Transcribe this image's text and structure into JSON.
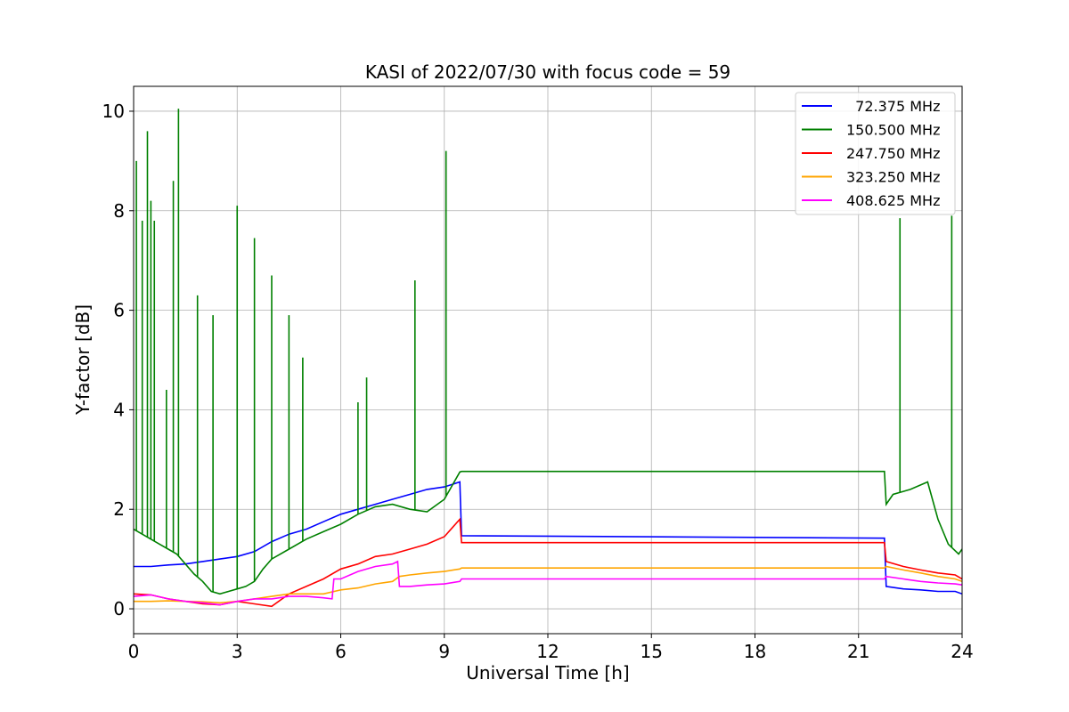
{
  "chart_data": {
    "type": "line",
    "title": "KASI of 2022/07/30 with focus code = 59",
    "xlabel": "Universal Time [h]",
    "ylabel": "Y-factor [dB]",
    "xlim": [
      0,
      24
    ],
    "ylim": [
      -0.5,
      10.5
    ],
    "xticks": [
      "0",
      "3",
      "6",
      "9",
      "12",
      "15",
      "18",
      "21",
      "24"
    ],
    "yticks": [
      "0",
      "2",
      "4",
      "6",
      "8",
      "10"
    ],
    "grid": true,
    "legend_position": "top-right",
    "series": [
      {
        "name": "  72.375 MHz",
        "color": "#0000ff",
        "x": [
          0,
          0.5,
          1,
          1.5,
          2,
          2.5,
          3,
          3.5,
          4,
          4.5,
          5,
          5.5,
          6,
          6.5,
          7,
          7.5,
          8,
          8.5,
          9,
          9.45,
          9.5,
          21.75,
          21.8,
          22.3,
          22.8,
          23.3,
          23.8,
          24
        ],
        "y": [
          0.85,
          0.85,
          0.88,
          0.9,
          0.95,
          1.0,
          1.05,
          1.15,
          1.35,
          1.5,
          1.6,
          1.75,
          1.9,
          2.0,
          2.1,
          2.2,
          2.3,
          2.4,
          2.45,
          2.55,
          1.47,
          1.42,
          0.45,
          0.4,
          0.38,
          0.35,
          0.35,
          0.3
        ]
      },
      {
        "name": "150.500 MHz",
        "color": "#008000",
        "x": [
          0,
          0.25,
          0.5,
          0.75,
          1,
          1.25,
          1.5,
          1.75,
          2,
          2.25,
          2.5,
          2.75,
          3,
          3.25,
          3.5,
          3.75,
          4,
          4.5,
          5,
          5.5,
          6,
          6.5,
          7,
          7.5,
          8,
          8.5,
          9,
          9.45,
          9.5,
          21.75,
          21.8,
          22,
          22.5,
          23,
          23.3,
          23.6,
          23.9,
          24
        ],
        "y": [
          1.6,
          1.5,
          1.4,
          1.3,
          1.2,
          1.1,
          0.9,
          0.7,
          0.55,
          0.35,
          0.3,
          0.35,
          0.4,
          0.45,
          0.55,
          0.8,
          1.0,
          1.2,
          1.4,
          1.55,
          1.7,
          1.9,
          2.05,
          2.1,
          2.0,
          1.95,
          2.2,
          2.75,
          2.76,
          2.76,
          2.1,
          2.3,
          2.4,
          2.55,
          1.8,
          1.3,
          1.1,
          1.2
        ]
      },
      {
        "name": "247.750 MHz",
        "color": "#ff0000",
        "x": [
          0,
          0.5,
          1,
          1.5,
          2,
          2.5,
          3,
          3.5,
          4,
          4.5,
          5,
          5.5,
          6,
          6.5,
          7,
          7.5,
          8,
          8.5,
          9,
          9.45,
          9.5,
          21.75,
          21.8,
          22.3,
          22.8,
          23.3,
          23.8,
          24
        ],
        "y": [
          0.3,
          0.28,
          0.2,
          0.15,
          0.1,
          0.08,
          0.15,
          0.1,
          0.05,
          0.3,
          0.45,
          0.6,
          0.8,
          0.9,
          1.05,
          1.1,
          1.2,
          1.3,
          1.45,
          1.8,
          1.33,
          1.33,
          0.95,
          0.85,
          0.78,
          0.72,
          0.68,
          0.6
        ]
      },
      {
        "name": "323.250 MHz",
        "color": "#ffa500",
        "x": [
          0,
          0.5,
          1,
          1.5,
          2,
          2.5,
          3,
          3.5,
          4,
          4.5,
          5,
          5.5,
          6,
          6.5,
          7,
          7.5,
          7.7,
          8,
          8.5,
          9,
          9.45,
          9.5,
          21.75,
          21.8,
          22.3,
          22.8,
          23.3,
          23.8,
          24
        ],
        "y": [
          0.15,
          0.15,
          0.16,
          0.15,
          0.14,
          0.12,
          0.15,
          0.2,
          0.25,
          0.3,
          0.3,
          0.3,
          0.38,
          0.42,
          0.5,
          0.55,
          0.65,
          0.68,
          0.72,
          0.75,
          0.8,
          0.82,
          0.82,
          0.85,
          0.78,
          0.72,
          0.65,
          0.6,
          0.55
        ]
      },
      {
        "name": "408.625 MHz",
        "color": "#ff00ff",
        "x": [
          0,
          0.5,
          1,
          1.5,
          2,
          2.5,
          3,
          3.5,
          4,
          4.5,
          5,
          5.5,
          5.75,
          5.8,
          6,
          6.5,
          7,
          7.5,
          7.65,
          7.7,
          8,
          8.5,
          9,
          9.45,
          9.5,
          21.75,
          21.8,
          22.3,
          22.8,
          23.3,
          23.8,
          24
        ],
        "y": [
          0.25,
          0.28,
          0.2,
          0.15,
          0.12,
          0.08,
          0.15,
          0.2,
          0.2,
          0.25,
          0.25,
          0.22,
          0.2,
          0.6,
          0.6,
          0.75,
          0.85,
          0.9,
          0.95,
          0.45,
          0.45,
          0.48,
          0.5,
          0.55,
          0.6,
          0.6,
          0.65,
          0.6,
          0.55,
          0.52,
          0.5,
          0.48
        ]
      }
    ],
    "annotations": [
      {
        "series": "150.500 MHz",
        "x": 0.08,
        "y": 9.0
      },
      {
        "series": "150.500 MHz",
        "x": 0.25,
        "y": 7.8
      },
      {
        "series": "150.500 MHz",
        "x": 0.4,
        "y": 9.6
      },
      {
        "series": "150.500 MHz",
        "x": 0.5,
        "y": 8.2
      },
      {
        "series": "150.500 MHz",
        "x": 0.6,
        "y": 7.8
      },
      {
        "series": "150.500 MHz",
        "x": 0.95,
        "y": 4.4
      },
      {
        "series": "150.500 MHz",
        "x": 1.15,
        "y": 8.6
      },
      {
        "series": "150.500 MHz",
        "x": 1.3,
        "y": 10.05
      },
      {
        "series": "150.500 MHz",
        "x": 1.85,
        "y": 6.3
      },
      {
        "series": "150.500 MHz",
        "x": 2.3,
        "y": 5.9
      },
      {
        "series": "150.500 MHz",
        "x": 3.0,
        "y": 8.1
      },
      {
        "series": "150.500 MHz",
        "x": 3.5,
        "y": 7.45
      },
      {
        "series": "150.500 MHz",
        "x": 4.0,
        "y": 6.7
      },
      {
        "series": "150.500 MHz",
        "x": 4.5,
        "y": 5.9
      },
      {
        "series": "150.500 MHz",
        "x": 4.9,
        "y": 5.05
      },
      {
        "series": "150.500 MHz",
        "x": 6.5,
        "y": 4.15
      },
      {
        "series": "150.500 MHz",
        "x": 6.75,
        "y": 4.65
      },
      {
        "series": "150.500 MHz",
        "x": 8.15,
        "y": 6.6
      },
      {
        "series": "150.500 MHz",
        "x": 9.05,
        "y": 9.2
      },
      {
        "series": "150.500 MHz",
        "x": 22.2,
        "y": 7.85
      },
      {
        "series": "150.500 MHz",
        "x": 23.7,
        "y": 7.9
      }
    ]
  }
}
